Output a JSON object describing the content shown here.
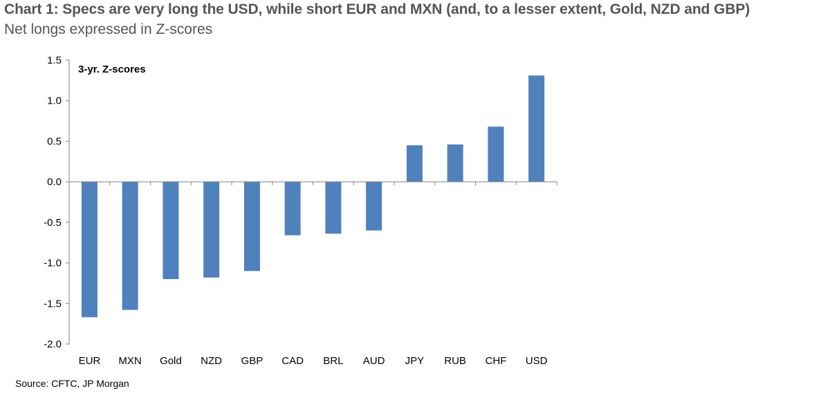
{
  "header": {
    "title": "Chart 1: Specs are very long the USD, while short EUR and MXN (and, to a lesser extent, Gold, NZD and GBP)",
    "subtitle": "Net longs expressed in Z-scores"
  },
  "footer": {
    "source": "Source: CFTC, JP Morgan"
  },
  "chart_data": {
    "type": "bar",
    "title": "Chart 1: Specs are very long the USD, while short EUR and MXN (and, to a lesser extent, Gold, NZD and GBP)",
    "subtitle": "Net longs expressed in Z-scores",
    "annotation": "3-yr. Z-scores",
    "xlabel": "",
    "ylabel": "",
    "categories": [
      "EUR",
      "MXN",
      "Gold",
      "NZD",
      "GBP",
      "CAD",
      "BRL",
      "AUD",
      "JPY",
      "RUB",
      "CHF",
      "USD"
    ],
    "values": [
      -1.67,
      -1.58,
      -1.2,
      -1.18,
      -1.1,
      -0.66,
      -0.64,
      -0.6,
      0.45,
      0.46,
      0.68,
      1.31
    ],
    "ylim": [
      -2.0,
      1.5
    ],
    "yticks": [
      "1.5",
      "1.0",
      "0.5",
      "0.0",
      "-0.5",
      "-1.0",
      "-1.5",
      "-2.0"
    ],
    "bar_color": "#4f81bd",
    "grid": false,
    "legend": "none"
  }
}
